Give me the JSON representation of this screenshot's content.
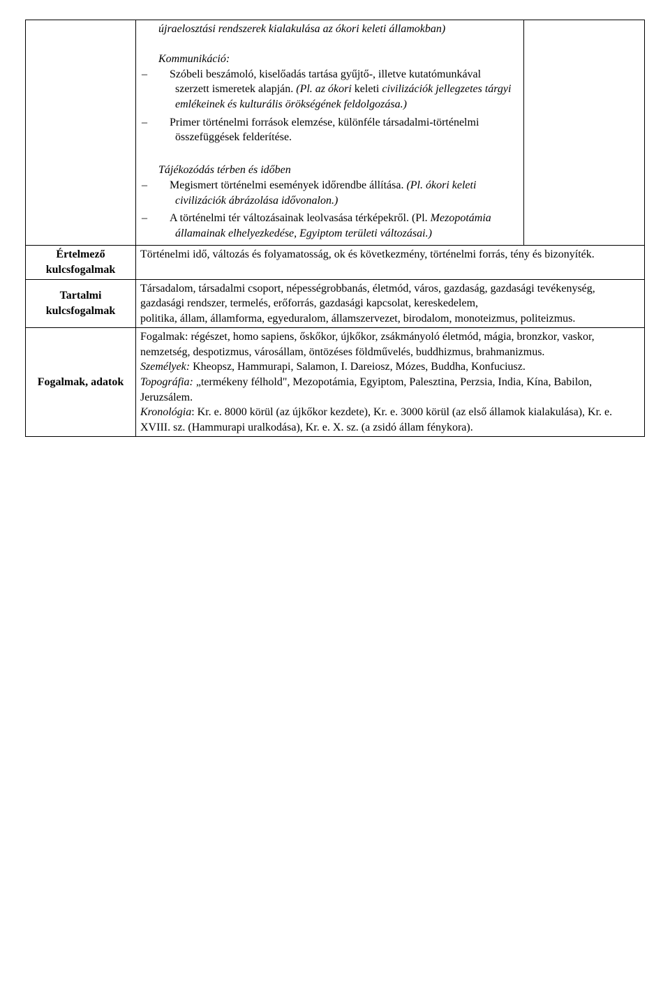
{
  "row1": {
    "intro": "újraelosztási rendszerek kialakulása az ókori keleti államokban)",
    "sec1_title": "Kommunikáció:",
    "sec1_item1": "Szóbeli beszámoló, kiselőadás tartása gyűjtő-, illetve kutatómunkával szerzett ismeretek alapján. (Pl. az ókori keleti civilizációk jellegzetes tárgyi emlékeinek és kulturális örökségének feldolgozása.)",
    "sec1_item1_italic_lead": "(Pl. az ókori ",
    "sec1_item1_plain_lead": "keleti ",
    "sec1_item1_italic_tail": "civilizációk jellegzetes tárgyi emlékeinek és kulturális örökségének feldolgozása.)",
    "sec1_item1_a": "Szóbeli beszámoló, kiselőadás tartása gyűjtő-, illetve kutatómunkával szerzett ismeretek alapján. ",
    "sec1_item2": "Primer történelmi források elemzése, különféle társadalmi-történelmi összefüggések felderítése.",
    "sec2_title": "Tájékozódás térben és időben",
    "sec2_item1_a": "Megismert történelmi események időrendbe állítása. ",
    "sec2_item1_i": "(Pl. ókori keleti civilizációk ábrázolása idővonalon.)",
    "sec2_item2_a": "A történelmi tér változásainak leolvasása térképekről. (Pl. ",
    "sec2_item2_i": "Mezopotámia államainak elhelyezkedése, Egyiptom területi változásai.)"
  },
  "labels": {
    "ertelmezo": "Értelmező kulcsfogalmak",
    "tartalmi": "Tartalmi kulcsfogalmak",
    "fogalmak": "Fogalmak, adatok"
  },
  "ertelmezo_text": "Történelmi idő, változás és folyamatosság, ok és következmény, történelmi forrás, tény és bizonyíték.",
  "tartalmi_text": "Társadalom, társadalmi csoport, népességrobbanás, életmód, város, gazdaság, gazdasági tevékenység, gazdasági rendszer, termelés, erőforrás, gazdasági kapcsolat, kereskedelem,\npolitika, állam, államforma, egyeduralom, államszervezet, birodalom, monoteizmus, politeizmus.",
  "fogalmak_block": {
    "l1": "Fogalmak: régészet, homo sapiens, őskőkor, újkőkor, zsákmányoló életmód, mágia, bronzkor, vaskor, nemzetség, despotizmus, városállam, öntözéses földművelés, buddhizmus, brahmanizmus.",
    "l2_i": "Személyek:",
    "l2_r": " Kheopsz, Hammurapi, Salamon, I. Dareiosz, Mózes, Buddha, Konfuciusz.",
    "l3_i": "Topográfia:",
    "l3_r": " „termékeny félhold\", Mezopotámia, Egyiptom, Palesztina, Perzsia, India, Kína, Babilon, Jeruzsálem.",
    "l4_i": "Kronológia",
    "l4_r": ": Kr. e. 8000 körül (az újkőkor kezdete), Kr. e. 3000 körül (az első államok kialakulása), Kr. e. XVIII. sz. (Hammurapi uralkodása), Kr. e. X. sz. (a zsidó állam fénykora)."
  }
}
